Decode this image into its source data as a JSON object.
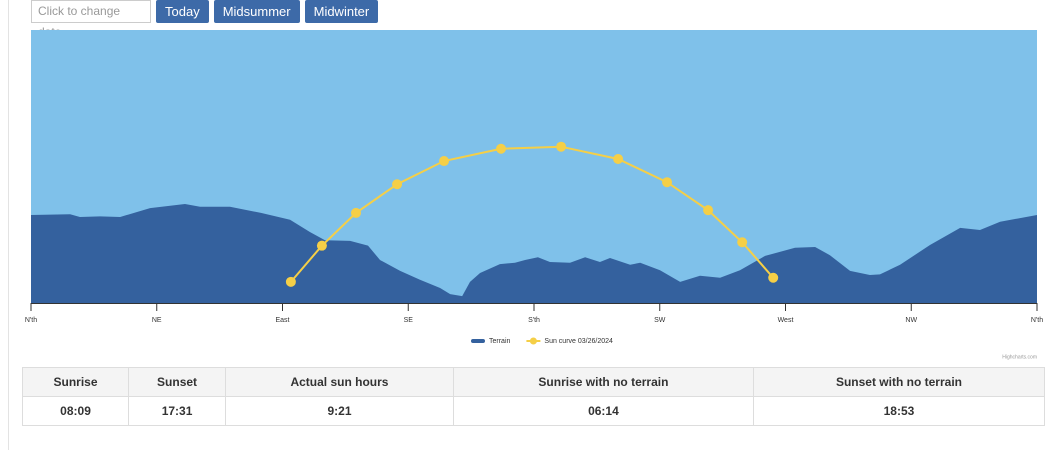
{
  "controls": {
    "date_placeholder": "Click to change date...",
    "buttons": [
      "Today",
      "Midsummer",
      "Midwinter"
    ]
  },
  "chart_data": {
    "type": "area",
    "plot_background": "#7fc1ea",
    "xlim": [
      0,
      360
    ],
    "ylim": [
      0,
      40
    ],
    "xticks": [
      {
        "value": 0,
        "label": "N'th"
      },
      {
        "value": 45,
        "label": "NE"
      },
      {
        "value": 90,
        "label": "East"
      },
      {
        "value": 135,
        "label": "SE"
      },
      {
        "value": 180,
        "label": "S'th"
      },
      {
        "value": 225,
        "label": "SW"
      },
      {
        "value": 270,
        "label": "West"
      },
      {
        "value": 315,
        "label": "NW"
      },
      {
        "value": 360,
        "label": "N'th"
      }
    ],
    "series": [
      {
        "name": "Terrain",
        "type": "area",
        "color": "#34619e",
        "x": [
          0,
          14.0,
          17.5,
          24.7,
          31.9,
          42.6,
          55.1,
          60.5,
          71.2,
          82.3,
          92.7,
          99.8,
          105.2,
          114.2,
          120.6,
          124.9,
          132.1,
          139.2,
          146.4,
          150.0,
          154.3,
          157.1,
          160.7,
          167.8,
          173.2,
          176.8,
          181.4,
          185.7,
          192.9,
          198.3,
          203.6,
          207.2,
          214.4,
          218.0,
          225.1,
          232.3,
          239.4,
          246.6,
          253.7,
          262.7,
          273.4,
          280.6,
          285.9,
          293.1,
          300.2,
          303.8,
          311.0,
          321.7,
          332.5,
          339.6,
          346.8,
          360
        ],
        "values": [
          12.9,
          13.0,
          12.6,
          12.7,
          12.6,
          13.9,
          14.5,
          14.1,
          14.1,
          13.2,
          12.2,
          10.4,
          9.2,
          9.1,
          8.4,
          6.3,
          4.7,
          3.4,
          2.2,
          1.3,
          1.0,
          3.1,
          4.4,
          5.7,
          5.9,
          6.3,
          6.7,
          6.0,
          5.9,
          6.7,
          6.0,
          6.6,
          5.6,
          5.9,
          4.8,
          3.1,
          4.0,
          3.7,
          4.8,
          6.9,
          8.1,
          8.2,
          7.0,
          4.7,
          4.1,
          4.2,
          5.6,
          8.5,
          11.0,
          10.7,
          11.9,
          12.9
        ]
      },
      {
        "name": "Sun curve 03/26/2024",
        "type": "line",
        "color": "#f5cf47",
        "x": [
          93.0,
          104.1,
          116.3,
          131.0,
          147.8,
          168.2,
          189.7,
          210.1,
          227.6,
          242.3,
          254.5,
          265.6
        ],
        "values": [
          3.1,
          8.4,
          13.2,
          17.4,
          20.8,
          22.6,
          22.9,
          21.1,
          17.7,
          13.6,
          8.9,
          3.7
        ]
      }
    ],
    "credits": "Highcharts.com"
  },
  "table": {
    "headers": [
      "Sunrise",
      "Sunset",
      "Actual sun hours",
      "Sunrise with no terrain",
      "Sunset with no terrain"
    ],
    "rows": [
      [
        "08:09",
        "17:31",
        "9:21",
        "06:14",
        "18:53"
      ]
    ]
  }
}
